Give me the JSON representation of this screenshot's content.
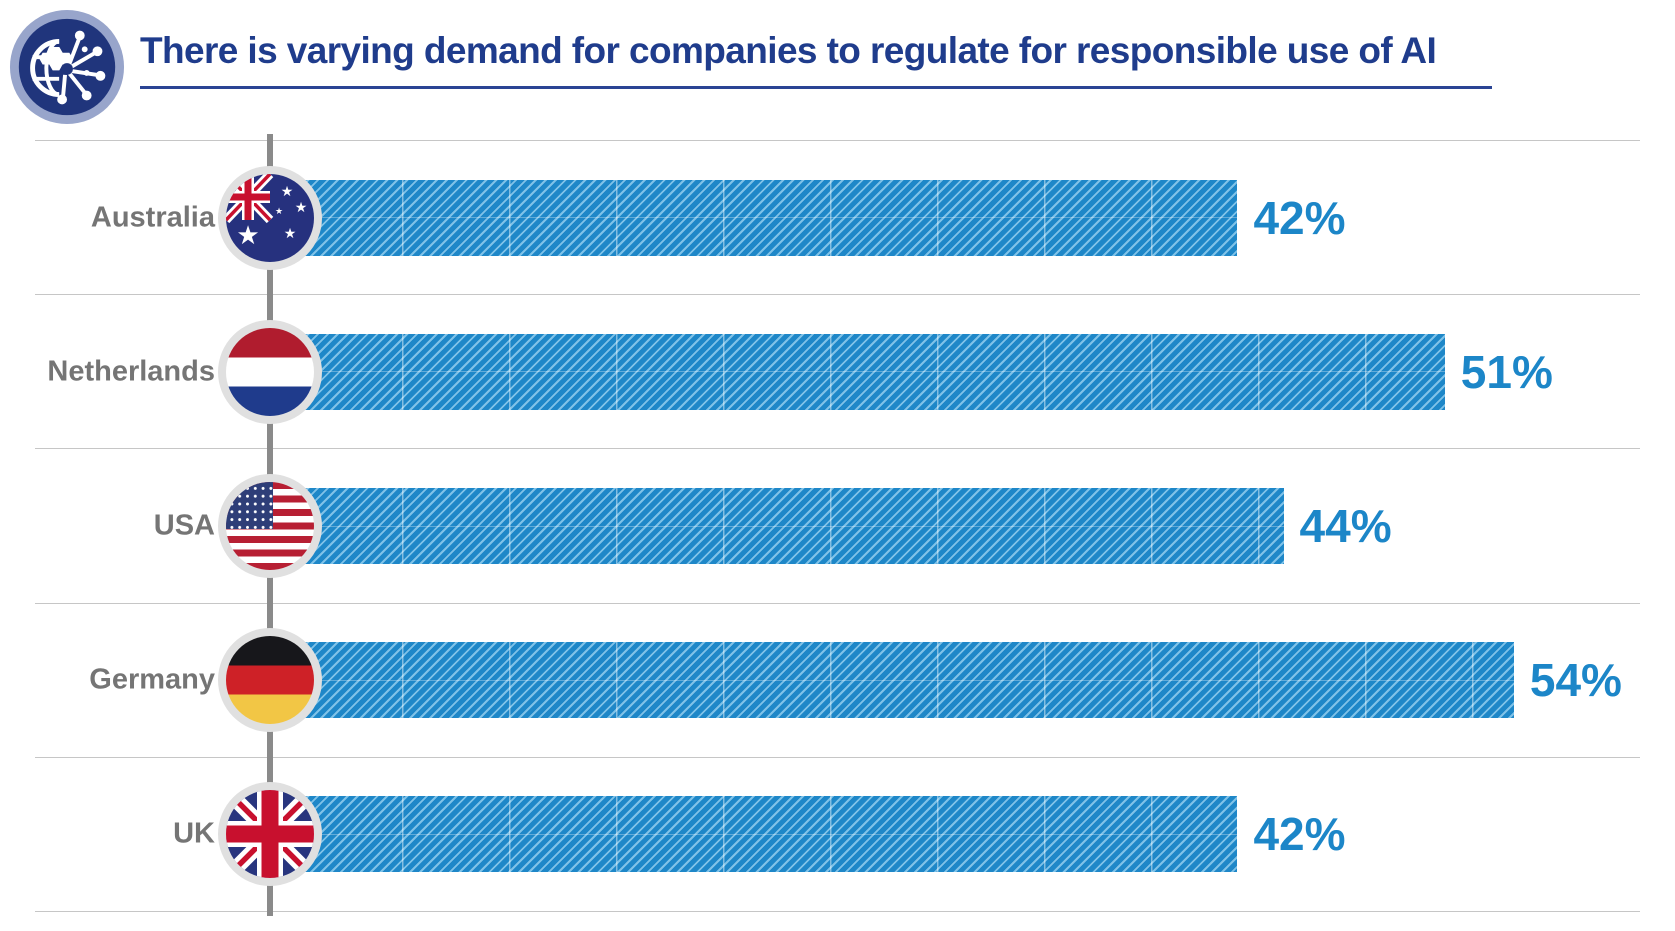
{
  "header": {
    "title": "There is varying demand for companies to regulate for responsible use of AI",
    "logo_icon": "globe-network-gear-icon",
    "title_color": "#1F3C8C"
  },
  "chart_data": {
    "type": "bar",
    "orientation": "horizontal",
    "title": "There is varying demand for companies to regulate for responsible use of AI",
    "categories": [
      "Australia",
      "Netherlands",
      "USA",
      "Germany",
      "UK"
    ],
    "values": [
      42,
      51,
      44,
      54,
      42
    ],
    "value_labels": [
      "42%",
      "51%",
      "44%",
      "54%",
      "42%"
    ],
    "unit": "percent",
    "xlim": [
      0,
      57
    ],
    "legend_position": "none",
    "grid": "light horizontal separators between rows; faint vertical gridlines visible inside bars",
    "bar_style": "diagonal hatched stripes",
    "bar_color": "#1E87C8",
    "bar_stripe_color": "#7FC2E8",
    "value_label_color": "#1C86C8",
    "category_label_color": "#757575",
    "separator_color": "#C6C6C6",
    "axis_line_color": "#8A8A8A",
    "flag_icons": [
      "australia-flag",
      "netherlands-flag",
      "usa-flag",
      "germany-flag",
      "uk-flag"
    ]
  }
}
